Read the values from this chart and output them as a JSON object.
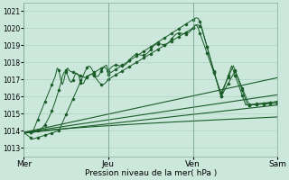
{
  "xlabel": "Pression niveau de la mer( hPa )",
  "background_color": "#cce8dc",
  "grid_color": "#a8ccbc",
  "line_color": "#1a5c28",
  "ylim": [
    1012.5,
    1021.5
  ],
  "yticks": [
    1013,
    1014,
    1015,
    1016,
    1017,
    1018,
    1019,
    1020,
    1021
  ],
  "xtick_labels": [
    "Mer",
    "Jeu",
    "Ven",
    "Sam"
  ],
  "xtick_positions": [
    0,
    48,
    96,
    144
  ],
  "total_points": 145
}
